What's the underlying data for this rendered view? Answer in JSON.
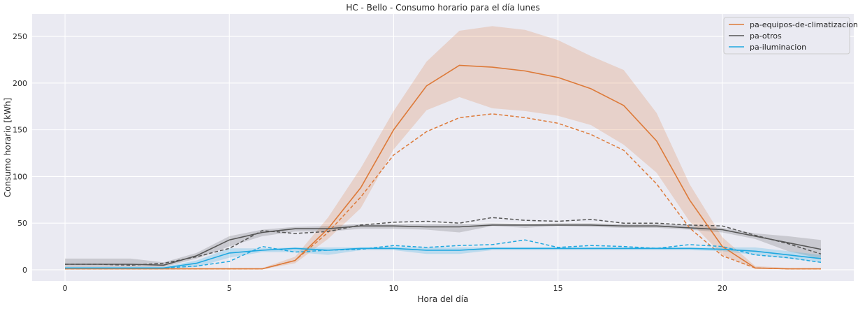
{
  "chart_data": {
    "type": "line",
    "title": "HC - Bello - Consumo horario para el día lunes",
    "xlabel": "Hora del día",
    "ylabel": "Consumo horario [kWh]",
    "xlim": [
      -1,
      24
    ],
    "ylim": [
      -12,
      274
    ],
    "x_ticks": [
      0,
      5,
      10,
      15,
      20
    ],
    "y_ticks": [
      0,
      50,
      100,
      150,
      200,
      250
    ],
    "grid": true,
    "legend_position": "top-right",
    "x": [
      0,
      1,
      2,
      3,
      4,
      5,
      6,
      7,
      8,
      9,
      10,
      11,
      12,
      13,
      14,
      15,
      16,
      17,
      18,
      19,
      20,
      21,
      22,
      23
    ],
    "series": [
      {
        "name": "pa-equipos-de-climatizacion",
        "color": "#dd7a39",
        "mean": [
          1,
          1,
          1,
          1,
          1,
          1,
          1,
          10,
          44,
          88,
          150,
          197,
          219,
          217,
          213,
          206,
          194,
          176,
          138,
          75,
          25,
          2,
          1,
          1
        ],
        "lower": [
          0.5,
          0.5,
          0.5,
          0.5,
          0.5,
          0.5,
          0.5,
          7,
          33,
          66,
          129,
          171,
          185,
          173,
          170,
          165,
          155,
          134,
          104,
          52,
          16,
          1,
          0.5,
          0.5
        ],
        "upper": [
          2,
          2,
          2,
          2,
          2,
          2,
          2,
          14,
          56,
          109,
          170,
          223,
          256,
          261,
          257,
          246,
          229,
          214,
          168,
          92,
          35,
          4,
          2,
          2
        ],
        "dashed": [
          1,
          1,
          1,
          1,
          1,
          1,
          1,
          10,
          40,
          78,
          123,
          148,
          163,
          167,
          163,
          157,
          145,
          128,
          92,
          45,
          15,
          2,
          1,
          1
        ]
      },
      {
        "name": "pa-otros",
        "color": "#555555",
        "mean": [
          6,
          6,
          6,
          5,
          15,
          32,
          40,
          44,
          44,
          47,
          47,
          46,
          46,
          48,
          48,
          48,
          48,
          47,
          47,
          45,
          43,
          36,
          29,
          22
        ],
        "lower": [
          3,
          3,
          3,
          3,
          12,
          25,
          36,
          41,
          41,
          44,
          44,
          43,
          40,
          47,
          45,
          47,
          46,
          45,
          45,
          43,
          40,
          33,
          20,
          12
        ],
        "upper": [
          12,
          12,
          12,
          8,
          18,
          36,
          43,
          46,
          47,
          49,
          49,
          49,
          49,
          50,
          49,
          50,
          50,
          49,
          49,
          48,
          45,
          39,
          36,
          32
        ],
        "dashed": [
          6,
          6,
          5,
          7,
          14,
          23,
          42,
          39,
          41,
          48,
          51,
          52,
          50,
          56,
          53,
          52,
          54,
          50,
          50,
          48,
          47,
          37,
          28,
          17
        ]
      },
      {
        "name": "pa-iluminacion",
        "color": "#1fa8e0",
        "mean": [
          2,
          2,
          2,
          2,
          7,
          18,
          21,
          23,
          21,
          23,
          23,
          21,
          21,
          23,
          23,
          23,
          23,
          23,
          23,
          23,
          22,
          20,
          16,
          12
        ],
        "lower": [
          1,
          1,
          1,
          1,
          3,
          13,
          19,
          19,
          16,
          21,
          21,
          17,
          17,
          21,
          21,
          21,
          21,
          21,
          21,
          21,
          20,
          16,
          12,
          8
        ],
        "upper": [
          3,
          3,
          3,
          3,
          10,
          23,
          23,
          24,
          24,
          24,
          25,
          24,
          24,
          24,
          24,
          24,
          24,
          24,
          24,
          24,
          24,
          24,
          20,
          16
        ],
        "dashed": [
          2,
          2,
          2,
          2,
          4,
          9,
          25,
          19,
          21,
          22,
          26,
          24,
          26,
          27,
          32,
          24,
          26,
          25,
          23,
          27,
          25,
          16,
          13,
          8
        ]
      }
    ]
  }
}
